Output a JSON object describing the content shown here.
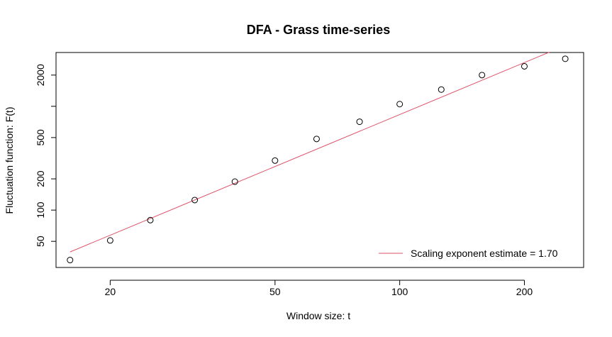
{
  "chart_data": {
    "type": "scatter",
    "title": "DFA - Grass time-series",
    "xlabel": "Window size: t",
    "ylabel": "Fluctuation function: F(t)",
    "x_scale": "log",
    "y_scale": "log",
    "xlim": [
      14.8,
      278
    ],
    "ylim": [
      28,
      3300
    ],
    "x_ticks": [
      20,
      50,
      100,
      200
    ],
    "x_tick_labels": [
      "20",
      "50",
      "100",
      "200"
    ],
    "y_ticks": [
      50,
      100,
      200,
      500,
      1000,
      2000
    ],
    "y_tick_labels": [
      "50",
      "100",
      "200",
      "500",
      "",
      "2000"
    ],
    "grid": false,
    "series": [
      {
        "points": [
          {
            "x": 16,
            "y": 33
          },
          {
            "x": 20,
            "y": 51
          },
          {
            "x": 25,
            "y": 80
          },
          {
            "x": 32,
            "y": 125
          },
          {
            "x": 40,
            "y": 188
          },
          {
            "x": 50,
            "y": 300
          },
          {
            "x": 63,
            "y": 485
          },
          {
            "x": 80,
            "y": 710
          },
          {
            "x": 100,
            "y": 1050
          },
          {
            "x": 126,
            "y": 1450
          },
          {
            "x": 158,
            "y": 2000
          },
          {
            "x": 200,
            "y": 2430
          },
          {
            "x": 251,
            "y": 2870
          }
        ],
        "color": "#000000",
        "marker": "open-circle"
      },
      {
        "name": "Scaling exponent estimate = 1.70",
        "type": "line",
        "points": [
          {
            "x": 16,
            "y": 39.5
          },
          {
            "x": 230,
            "y": 3330
          }
        ],
        "color": "#df536b"
      }
    ],
    "legend": {
      "position": "bottom-right",
      "entries": [
        "Scaling exponent estimate = 1.70"
      ]
    }
  }
}
